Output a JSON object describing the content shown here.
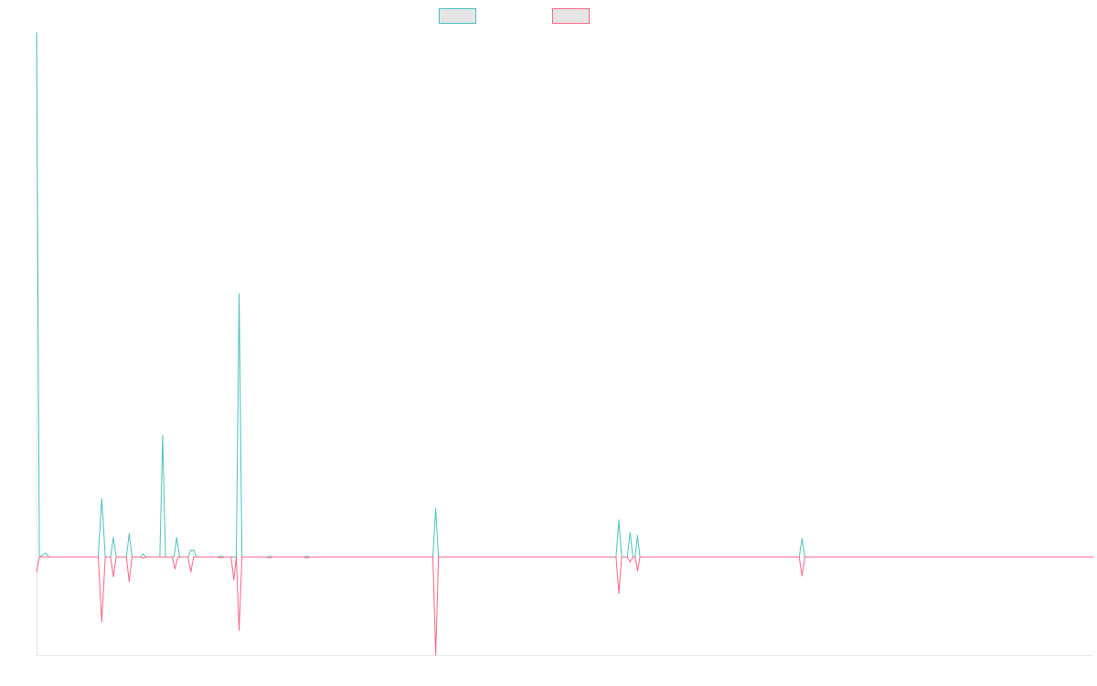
{
  "colors": {
    "series_a": "#4bc0c0",
    "series_b": "#ff6384",
    "legend_fill": "#e5e5e5",
    "axis": "#e6e6e6"
  },
  "legend": [
    {
      "label": "",
      "color": "#4bc0c0"
    },
    {
      "label": "",
      "color": "#ff6384"
    }
  ],
  "chart_data": {
    "type": "line",
    "title": "",
    "xlabel": "",
    "ylabel": "",
    "grid": false,
    "legend_position": "top-center",
    "axis_labels_visible": false,
    "ylim": [
      -100,
      540
    ],
    "x": [
      0,
      0.5,
      1,
      1.5,
      2,
      2.5,
      3,
      3.5,
      4,
      4.5,
      5,
      5.5,
      6,
      6.5,
      7,
      7.5,
      8,
      8.5,
      9,
      9.5,
      10,
      10.5,
      11,
      11.5,
      12,
      12.5,
      13,
      13.5,
      14,
      14.5,
      15,
      15.5,
      16,
      16.5,
      17,
      17.5,
      18,
      18.5,
      19,
      19.5,
      20,
      20.5,
      21,
      21.5,
      22,
      22.5,
      23,
      23.5,
      24,
      24.5,
      25,
      25.5,
      26,
      26.5,
      27,
      27.5,
      28,
      28.5,
      29,
      29.5,
      30,
      30.5,
      31,
      31.5,
      32,
      32.5,
      33,
      33.5,
      34,
      34.5,
      35,
      35.5,
      36,
      36.5,
      37,
      37.5,
      38,
      38.5,
      39,
      39.5,
      40,
      40.5,
      41,
      41.5,
      42,
      42.5,
      43,
      43.5,
      44,
      44.5,
      45,
      45.5,
      46,
      46.5,
      47,
      47.5,
      48,
      48.5,
      49,
      49.5,
      50,
      50.5,
      51,
      51.5,
      52,
      52.5,
      53,
      53.5,
      54,
      54.5,
      55,
      55.5,
      56,
      56.5,
      57,
      57.5,
      58,
      58.5,
      59,
      59.5,
      60,
      60.5,
      61,
      61.5,
      62,
      62.5,
      63,
      63.5,
      64,
      64.5,
      65,
      65.5,
      66,
      66.5,
      67,
      67.5,
      68,
      68.5,
      69,
      69.5,
      70,
      70.5,
      71,
      71.5,
      72,
      72.5,
      73,
      73.5,
      74,
      74.5,
      75,
      75.5,
      76,
      76.5,
      77,
      77.5,
      78,
      78.5,
      79,
      79.5,
      80,
      80.5,
      81,
      81.5,
      82,
      82.5,
      83,
      83.5,
      84,
      84.5,
      85,
      85.5,
      86,
      86.5,
      87,
      87.5,
      88,
      88.5,
      89,
      89.5,
      90,
      90.5,
      91,
      91.5,
      92,
      92.5,
      93,
      93.5,
      94,
      94.5,
      95,
      95.5,
      96,
      96.5,
      97,
      97.5,
      98,
      98.5,
      99,
      99.5,
      100,
      100.5,
      101,
      101.5,
      102,
      102.5,
      103,
      103.5,
      104,
      104.5,
      105,
      105.5,
      106,
      106.5,
      107,
      107.5,
      108,
      108.5,
      109,
      109.5,
      110,
      110.5,
      111,
      111.5,
      112,
      112.5,
      113,
      113.5,
      114,
      114.5,
      115,
      115.5,
      116,
      116.5,
      117,
      117.5,
      118,
      118.5,
      119,
      119.5,
      120,
      120.5,
      121,
      121.5,
      122,
      122.5,
      123,
      123.5,
      124,
      124.5,
      125,
      125.5,
      126,
      126.5,
      127,
      127.5,
      128,
      128.5,
      129,
      129.5,
      130,
      130.5,
      131,
      131.5,
      132,
      132.5,
      133,
      133.5,
      134,
      134.5,
      135,
      135.5,
      136,
      136.5,
      137,
      137.5,
      138,
      138.5,
      139,
      139.5,
      140,
      140.5,
      141,
      141.5,
      142,
      142.5,
      143,
      143.5,
      144,
      144.5,
      145,
      145.5,
      146,
      146.5,
      147,
      147.5,
      148,
      148.5,
      149,
      149.5,
      150,
      150.5,
      151,
      151.5,
      152,
      152.5,
      153,
      153.5,
      154,
      154.5,
      155,
      155.5,
      156,
      156.5,
      157,
      157.5,
      158,
      158.5,
      159,
      159.5,
      160,
      160.5,
      161,
      161.5,
      162,
      162.5,
      163,
      163.5,
      164,
      164.5,
      165,
      165.5,
      166,
      166.5,
      167,
      167.5,
      168,
      168.5,
      169,
      169.5,
      170,
      170.5,
      171,
      171.5,
      172,
      172.5,
      173,
      173.5,
      174,
      174.5,
      175,
      175.5,
      176,
      176.5,
      177,
      177.5,
      178,
      178.5,
      179,
      179.5,
      180,
      180.5,
      181,
      181.5,
      182,
      182.5,
      183,
      183.5,
      184,
      184.5,
      185,
      185.5,
      186,
      186.5,
      187,
      187.5,
      188,
      188.5,
      189,
      189.5,
      190,
      190.5,
      191,
      191.5,
      192,
      192.5,
      193,
      193.5,
      194,
      194.5,
      195,
      195.5,
      196,
      196.5,
      197,
      197.5,
      198,
      198.5,
      199,
      199.5,
      200,
      200.5,
      201,
      201.5,
      202,
      202.5,
      203,
      203.5,
      204,
      204.5,
      205,
      205.5,
      206,
      206.5,
      207,
      207.5,
      208,
      208.5,
      209,
      209.5,
      210,
      210.5,
      211,
      211.5,
      212,
      212.5,
      213,
      213.5,
      214,
      214.5,
      215,
      215.5,
      216,
      216.5,
      217,
      217.5,
      218,
      218.5,
      219,
      219.5,
      220,
      220.5,
      221,
      221.5,
      222,
      222.5,
      223,
      223.5,
      224,
      224.5,
      225,
      225.5,
      226,
      226.5,
      227,
      227.5,
      228,
      228.5,
      229,
      229.5,
      230,
      230.5,
      231,
      231.5,
      232,
      232.5,
      233,
      233.5,
      234,
      234.5,
      235,
      235.5,
      236,
      236.5,
      237,
      237.5,
      238,
      238.5,
      239,
      239.5,
      240,
      240.5,
      241,
      241.5,
      242,
      242.5,
      243,
      243.5,
      244,
      244.5,
      245,
      245.5,
      246,
      246.5,
      247,
      247.5,
      248,
      248.5,
      249,
      249.5,
      250,
      250.5,
      251,
      251.5,
      252,
      252.5,
      253,
      253.5,
      254,
      254.5,
      255,
      255.5,
      256,
      256.5,
      257,
      257.5,
      258,
      258.5,
      259,
      259.5,
      260,
      260.5,
      261,
      261.5,
      262,
      262.5,
      263,
      263.5,
      264,
      264.5,
      265,
      265.5,
      266,
      266.5,
      267,
      267.5,
      268,
      268.5,
      269,
      269.5,
      270,
      270.5,
      271,
      271.5,
      272,
      272.5,
      273,
      273.5,
      274,
      274.5,
      275,
      275.5,
      276,
      276.5,
      277,
      277.5,
      278,
      278.5,
      279,
      279.5,
      280,
      280.5,
      281,
      281.5,
      282,
      282.5,
      283,
      283.5,
      284,
      284.5,
      285,
      285.5,
      286,
      286.5,
      287,
      287.5,
      288,
      288.5,
      289,
      289.5,
      290,
      290.5,
      291,
      291.5,
      292,
      292.5,
      293,
      293.5,
      294,
      294.5,
      295,
      295.5,
      296,
      296.5,
      297,
      297.5,
      298,
      298.5,
      299,
      299.5,
      300
    ],
    "xlim": [
      0,
      300
    ],
    "series": [
      {
        "color": "#4bc0c0",
        "points": [
          [
            0,
            540
          ],
          [
            0.8,
            0
          ],
          [
            2.6,
            4
          ],
          [
            3.5,
            0
          ],
          [
            17.5,
            0
          ],
          [
            18.5,
            60
          ],
          [
            19.5,
            0
          ],
          [
            21,
            0
          ],
          [
            21.8,
            20
          ],
          [
            22.6,
            0
          ],
          [
            25.5,
            0
          ],
          [
            26.3,
            24
          ],
          [
            27.1,
            0
          ],
          [
            29.5,
            0
          ],
          [
            30.3,
            3
          ],
          [
            31.1,
            0
          ],
          [
            35,
            0
          ],
          [
            35.8,
            125
          ],
          [
            36.6,
            0
          ],
          [
            39,
            0
          ],
          [
            39.8,
            20
          ],
          [
            40.6,
            0
          ],
          [
            43,
            0
          ],
          [
            43.8,
            7
          ],
          [
            44.6,
            7
          ],
          [
            45.4,
            0
          ],
          [
            51.5,
            0
          ],
          [
            52.3,
            1
          ],
          [
            53.1,
            0
          ],
          [
            56.7,
            0
          ],
          [
            57.5,
            271
          ],
          [
            58.3,
            0
          ],
          [
            65.5,
            0
          ],
          [
            66.2,
            1
          ],
          [
            66.9,
            0
          ],
          [
            76,
            0
          ],
          [
            76.7,
            1
          ],
          [
            77.4,
            0
          ],
          [
            112.5,
            0
          ],
          [
            113.3,
            50
          ],
          [
            114.1,
            0
          ],
          [
            164.5,
            0
          ],
          [
            165.3,
            38
          ],
          [
            166.1,
            0
          ],
          [
            167.7,
            0
          ],
          [
            168.5,
            25
          ],
          [
            169.3,
            0
          ],
          [
            169.9,
            0
          ],
          [
            170.6,
            22
          ],
          [
            171.3,
            0
          ],
          [
            216.5,
            0
          ],
          [
            217.3,
            19
          ],
          [
            218.1,
            0
          ],
          [
            300,
            0
          ]
        ]
      },
      {
        "color": "#ff6384",
        "points": [
          [
            0,
            -15
          ],
          [
            0.8,
            0
          ],
          [
            3.5,
            0
          ],
          [
            17.5,
            0
          ],
          [
            18.5,
            -66
          ],
          [
            19.5,
            0
          ],
          [
            21,
            0
          ],
          [
            21.8,
            -20
          ],
          [
            22.6,
            0
          ],
          [
            25.5,
            0
          ],
          [
            26.3,
            -25
          ],
          [
            27.1,
            0
          ],
          [
            29.5,
            0
          ],
          [
            30.3,
            -1
          ],
          [
            31.1,
            0
          ],
          [
            38.5,
            0
          ],
          [
            39.3,
            -12
          ],
          [
            40.1,
            0
          ],
          [
            43,
            0
          ],
          [
            43.8,
            -15
          ],
          [
            44.6,
            0
          ],
          [
            51.5,
            0
          ],
          [
            52.3,
            -1
          ],
          [
            53.1,
            0
          ],
          [
            55.2,
            0
          ],
          [
            56,
            -23
          ],
          [
            56.7,
            0
          ],
          [
            57.5,
            -75
          ],
          [
            58.3,
            0
          ],
          [
            65.5,
            0
          ],
          [
            66.2,
            -1
          ],
          [
            66.9,
            0
          ],
          [
            76,
            0
          ],
          [
            76.7,
            -1
          ],
          [
            77.4,
            0
          ],
          [
            112.5,
            0
          ],
          [
            113.3,
            -100
          ],
          [
            114.1,
            0
          ],
          [
            164.5,
            0
          ],
          [
            165.3,
            -37
          ],
          [
            166.1,
            0
          ],
          [
            167.7,
            0
          ],
          [
            168.5,
            -5
          ],
          [
            169.3,
            0
          ],
          [
            169.9,
            0
          ],
          [
            170.6,
            -14
          ],
          [
            171.3,
            0
          ],
          [
            216.5,
            0
          ],
          [
            217.3,
            -19
          ],
          [
            218.1,
            0
          ],
          [
            300,
            0
          ]
        ]
      }
    ]
  }
}
